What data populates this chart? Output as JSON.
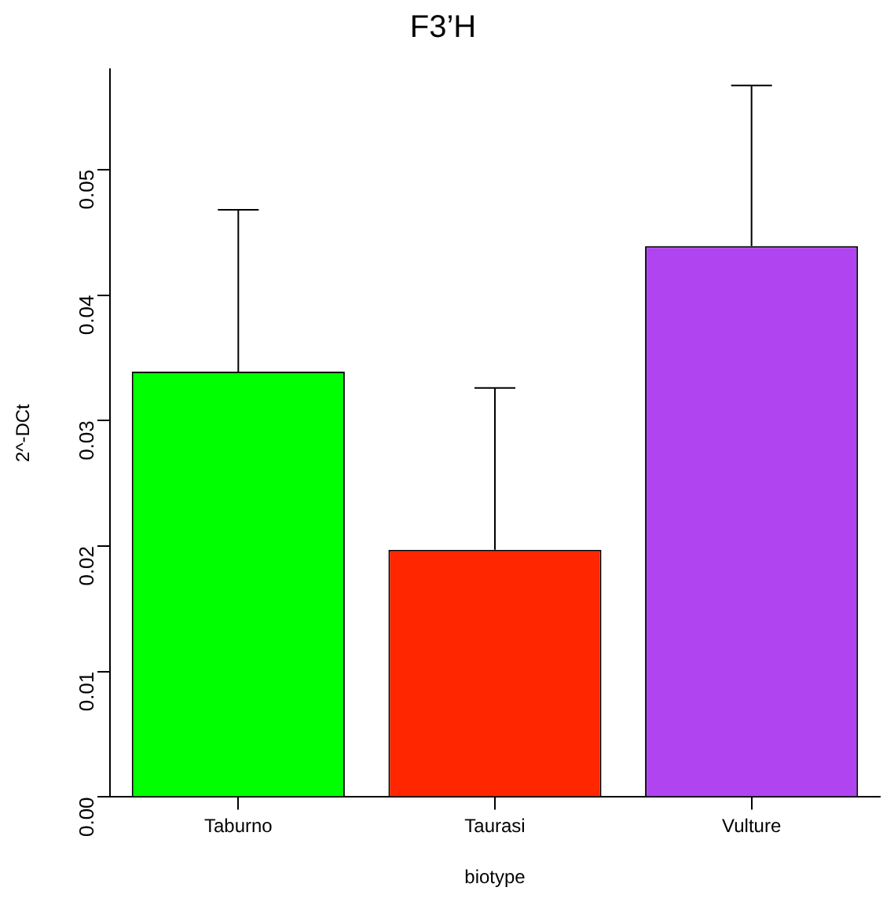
{
  "chart_data": {
    "type": "bar",
    "title": "F3’H",
    "xlabel": "biotype",
    "ylabel": "2^-DCt",
    "categories": [
      "Taburno",
      "Taurasi",
      "Vulture"
    ],
    "values": [
      0.0339,
      0.0197,
      0.0439
    ],
    "errors": [
      [
        0.0339,
        0.0468
      ],
      [
        0.0197,
        0.0326
      ],
      [
        0.0439,
        0.0567
      ]
    ],
    "colors": [
      "#00ff00",
      "#ff2600",
      "#b044f0"
    ],
    "ylim": [
      0,
      0.058
    ],
    "yticks": [
      {
        "value": 0,
        "label": "0.00"
      },
      0.01,
      0.02,
      0.03,
      0.04,
      0.05
    ],
    "grid": false,
    "legend": false
  }
}
